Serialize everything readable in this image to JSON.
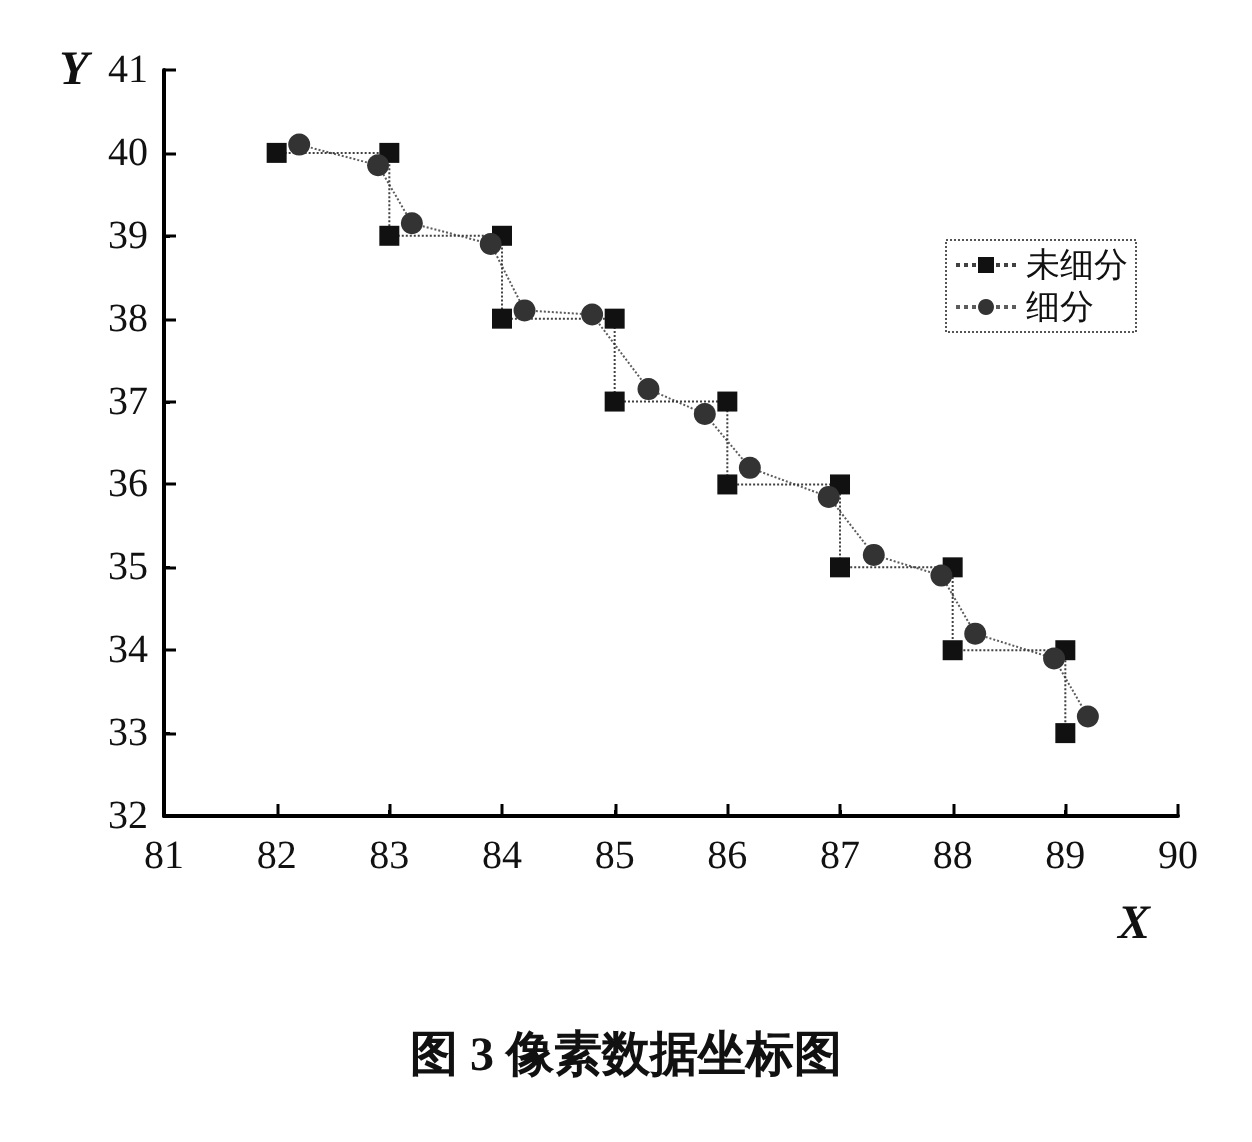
{
  "chart_data": {
    "type": "line",
    "title": "图 3 像素数据坐标图",
    "xlabel": "X",
    "ylabel": "Y",
    "xlim": [
      81,
      90
    ],
    "xticks": [
      81,
      82,
      83,
      84,
      85,
      86,
      87,
      88,
      89,
      90
    ],
    "ylim": [
      32,
      41
    ],
    "yticks": [
      32,
      33,
      34,
      35,
      36,
      37,
      38,
      39,
      40,
      41
    ],
    "grid": false,
    "legend": "top right",
    "line_style": "dotted",
    "series": [
      {
        "name": "未细分",
        "color": "#111111",
        "marker": "square",
        "x": [
          82,
          83,
          83,
          84,
          84,
          85,
          85,
          86,
          86,
          87,
          87,
          88,
          88,
          89,
          89
        ],
        "values": [
          40,
          40,
          39,
          39,
          38,
          38,
          37,
          37,
          36,
          36,
          35,
          35,
          34,
          34,
          33
        ]
      },
      {
        "name": "细分",
        "color": "#333333",
        "marker": "circle",
        "x": [
          82.2,
          82.9,
          83.2,
          83.9,
          84.2,
          84.8,
          85.3,
          85.8,
          86.2,
          86.9,
          87.3,
          87.9,
          88.2,
          88.9,
          89.2
        ],
        "values": [
          40.1,
          39.85,
          39.15,
          38.9,
          38.1,
          38.05,
          37.15,
          36.85,
          36.2,
          35.85,
          35.15,
          34.9,
          34.2,
          33.9,
          33.2
        ]
      }
    ]
  }
}
